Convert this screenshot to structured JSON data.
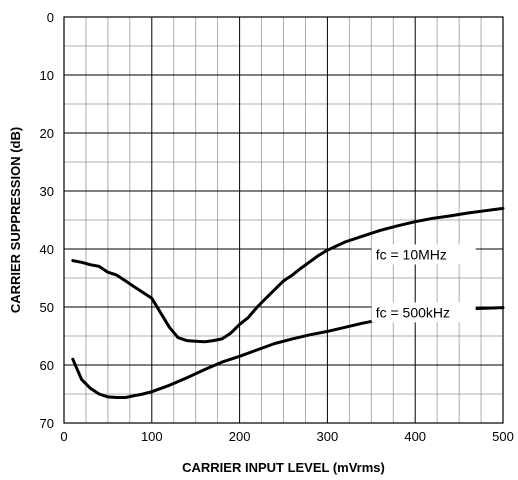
{
  "chart_data": {
    "type": "line",
    "xlabel": "CARRIER INPUT LEVEL (mVrms)",
    "ylabel": "CARRIER SUPPRESSION (dB)",
    "xlim": [
      0,
      500
    ],
    "ylim": [
      0,
      70
    ],
    "y_inverted": true,
    "grid": true,
    "x_ticks": [
      0,
      100,
      200,
      300,
      400,
      500
    ],
    "y_ticks": [
      0,
      10,
      20,
      30,
      40,
      50,
      60,
      70
    ],
    "series": [
      {
        "name": "fc = 10MHz",
        "x": [
          10,
          20,
          30,
          40,
          50,
          60,
          70,
          80,
          90,
          100,
          110,
          120,
          130,
          140,
          150,
          160,
          170,
          180,
          190,
          200,
          210,
          220,
          230,
          240,
          250,
          260,
          270,
          280,
          290,
          300,
          320,
          340,
          360,
          380,
          400,
          420,
          440,
          460,
          480,
          500
        ],
        "y": [
          42,
          42.3,
          42.7,
          43,
          44,
          44.5,
          45.5,
          46.5,
          47.5,
          48.5,
          51,
          53.5,
          55.3,
          55.8,
          55.9,
          56,
          55.8,
          55.5,
          54.5,
          53,
          51.8,
          50,
          48.5,
          47,
          45.5,
          44.5,
          43.3,
          42.2,
          41.1,
          40.2,
          38.8,
          37.8,
          36.8,
          36,
          35.3,
          34.7,
          34.3,
          33.8,
          33.4,
          33
        ]
      },
      {
        "name": "fc = 500kHz",
        "x": [
          10,
          20,
          30,
          40,
          50,
          60,
          70,
          80,
          90,
          100,
          120,
          140,
          160,
          180,
          200,
          220,
          240,
          260,
          280,
          300,
          320,
          340,
          360,
          380,
          400,
          420,
          440,
          460,
          480,
          500
        ],
        "y": [
          59,
          62.5,
          64,
          65,
          65.5,
          65.6,
          65.6,
          65.3,
          65,
          64.6,
          63.5,
          62.2,
          60.8,
          59.5,
          58.5,
          57.4,
          56.3,
          55.5,
          54.8,
          54.2,
          53.5,
          52.8,
          52.2,
          51.7,
          51.2,
          50.8,
          50.5,
          50.3,
          50.2,
          50.1
        ]
      }
    ],
    "annotations": [
      {
        "text": "fc = 10MHz",
        "series": 0
      },
      {
        "text": "fc = 500kHz",
        "series": 1
      }
    ]
  }
}
